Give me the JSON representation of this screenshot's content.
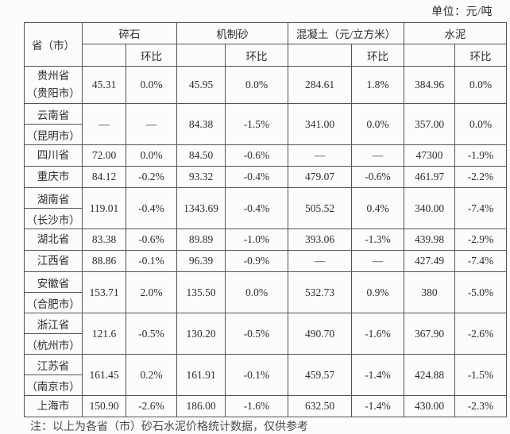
{
  "unit_label": "单位：元/吨",
  "table": {
    "corner_header": "省（市）",
    "column_groups": [
      {
        "label": "碎石",
        "sub_headers": [
          "",
          "环比"
        ]
      },
      {
        "label": "机制砂",
        "sub_headers": [
          "",
          "环比"
        ]
      },
      {
        "label": "混凝土（元/立方米）",
        "sub_headers": [
          "",
          "环比"
        ]
      },
      {
        "label": "水泥",
        "sub_headers": [
          "",
          "环比"
        ]
      }
    ],
    "rows": [
      {
        "region_lines": [
          "贵州省",
          "（贵阳市）"
        ],
        "region_split": false,
        "values": [
          "45.31",
          "0.0%",
          "45.95",
          "0.0%",
          "284.61",
          "1.8%",
          "384.96",
          "0.0%"
        ]
      },
      {
        "region_lines": [
          "云南省",
          "（昆明市）"
        ],
        "region_split": true,
        "values": [
          "—",
          "—",
          "84.38",
          "-1.5%",
          "341.00",
          "0.0%",
          "357.00",
          "0.0%"
        ]
      },
      {
        "region_lines": [
          "四川省"
        ],
        "region_split": false,
        "values": [
          "72.00",
          "0.0%",
          "84.50",
          "-0.6%",
          "—",
          "—",
          "47300",
          "-1.9%"
        ]
      },
      {
        "region_lines": [
          "重庆市"
        ],
        "region_split": false,
        "values": [
          "84.12",
          "-0.2%",
          "93.32",
          "-0.4%",
          "479.07",
          "-0.6%",
          "461.97",
          "-2.2%"
        ]
      },
      {
        "region_lines": [
          "湖南省",
          "（长沙市）"
        ],
        "region_split": true,
        "values": [
          "119.01",
          "-0.4%",
          "1343.69",
          "-0.4%",
          "505.52",
          "0.4%",
          "340.00",
          "-7.4%"
        ]
      },
      {
        "region_lines": [
          "湖北省"
        ],
        "region_split": false,
        "values": [
          "83.38",
          "-0.6%",
          "89.89",
          "-1.0%",
          "393.06",
          "-1.3%",
          "439.98",
          "-2.9%"
        ]
      },
      {
        "region_lines": [
          "江西省"
        ],
        "region_split": false,
        "values": [
          "88.86",
          "-0.1%",
          "96.39",
          "-0.9%",
          "—",
          "—",
          "427.49",
          "-7.4%"
        ]
      },
      {
        "region_lines": [
          "安徽省",
          "（合肥市）"
        ],
        "region_split": true,
        "values": [
          "153.71",
          "2.0%",
          "135.50",
          "0.0%",
          "532.73",
          "0.9%",
          "380",
          "-5.0%"
        ]
      },
      {
        "region_lines": [
          "浙江省",
          "（杭州市）"
        ],
        "region_split": true,
        "values": [
          "121.6",
          "-0.5%",
          "130.20",
          "-0.5%",
          "490.70",
          "-1.6%",
          "367.90",
          "-2.6%"
        ]
      },
      {
        "region_lines": [
          "江苏省",
          "（南京市）"
        ],
        "region_split": true,
        "values": [
          "161.45",
          "0.2%",
          "161.91",
          "-0.1%",
          "459.57",
          "-1.4%",
          "424.88",
          "-1.5%"
        ]
      },
      {
        "region_lines": [
          "上海市"
        ],
        "region_split": false,
        "values": [
          "150.90",
          "-2.6%",
          "186.00",
          "-1.6%",
          "632.50",
          "-1.4%",
          "430.00",
          "-2.3%"
        ]
      }
    ]
  },
  "footnote_partial": "注：以上为各省（市）砂石水泥价格统计数据，仅供参考",
  "colors": {
    "text": "#2d2d2d",
    "border": "#555555",
    "background": "#fcfcfc"
  }
}
